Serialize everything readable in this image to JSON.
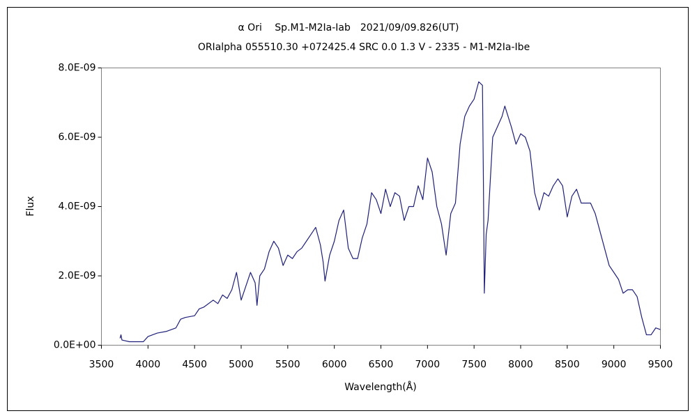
{
  "chart_data": {
    "type": "line",
    "title": "α Ori　 Sp.M1-M2Ia-Iab　2021/09/09.826(UT)",
    "subtitle": "ORIalpha 055510.30 +072425.4 SRC 0.0 1.3 V - 2335 - M1-M2Ia-Ibe",
    "x_label": "Wavelength(Å)",
    "y_label": "Flux",
    "xlim": [
      3500,
      9500
    ],
    "xticks": [
      3500,
      4000,
      4500,
      5000,
      5500,
      6000,
      6500,
      7000,
      7500,
      8000,
      8500,
      9000,
      9500
    ],
    "ylim": [
      0,
      8e-09
    ],
    "yticks": [
      {
        "value": 0,
        "label": "0.0E+00"
      },
      {
        "value": 2e-09,
        "label": "2.0E-09"
      },
      {
        "value": 4e-09,
        "label": "4.0E-09"
      },
      {
        "value": 6e-09,
        "label": "6.0E-09"
      },
      {
        "value": 8e-09,
        "label": "8.0E-09"
      }
    ],
    "grid": false,
    "x": [
      3700,
      3710,
      3720,
      3800,
      3900,
      3950,
      4000,
      4100,
      4200,
      4300,
      4350,
      4400,
      4500,
      4550,
      4600,
      4700,
      4750,
      4800,
      4850,
      4900,
      4950,
      5000,
      5050,
      5100,
      5150,
      5170,
      5200,
      5250,
      5300,
      5350,
      5400,
      5450,
      5500,
      5550,
      5600,
      5650,
      5700,
      5750,
      5800,
      5850,
      5880,
      5900,
      5950,
      6000,
      6050,
      6100,
      6150,
      6200,
      6250,
      6300,
      6350,
      6400,
      6450,
      6500,
      6550,
      6600,
      6650,
      6700,
      6750,
      6800,
      6850,
      6900,
      6950,
      7000,
      7050,
      7100,
      7150,
      7200,
      7250,
      7300,
      7350,
      7400,
      7450,
      7500,
      7550,
      7590,
      7600,
      7610,
      7630,
      7650,
      7700,
      7750,
      7800,
      7830,
      7900,
      7950,
      8000,
      8050,
      8100,
      8150,
      8200,
      8250,
      8300,
      8350,
      8400,
      8450,
      8500,
      8550,
      8600,
      8650,
      8700,
      8750,
      8800,
      8850,
      8900,
      8950,
      9000,
      9050,
      9100,
      9150,
      9200,
      9250,
      9300,
      9350,
      9400,
      9450,
      9500
    ],
    "series": [
      {
        "color": "#1f1f7a",
        "values": [
          2e-10,
          3e-10,
          1.5e-10,
          1e-10,
          1e-10,
          1e-10,
          2.5e-10,
          3.5e-10,
          4e-10,
          5e-10,
          7.5e-10,
          8e-10,
          8.5e-10,
          1.05e-09,
          1.1e-09,
          1.3e-09,
          1.2e-09,
          1.45e-09,
          1.35e-09,
          1.6e-09,
          2.1e-09,
          1.3e-09,
          1.7e-09,
          2.1e-09,
          1.8e-09,
          1.15e-09,
          2e-09,
          2.2e-09,
          2.7e-09,
          3e-09,
          2.8e-09,
          2.3e-09,
          2.6e-09,
          2.5e-09,
          2.7e-09,
          2.8e-09,
          3e-09,
          3.2e-09,
          3.4e-09,
          2.9e-09,
          2.4e-09,
          1.85e-09,
          2.6e-09,
          3e-09,
          3.6e-09,
          3.9e-09,
          2.8e-09,
          2.5e-09,
          2.5e-09,
          3.1e-09,
          3.5e-09,
          4.4e-09,
          4.2e-09,
          3.8e-09,
          4.5e-09,
          4e-09,
          4.4e-09,
          4.3e-09,
          3.6e-09,
          4e-09,
          4e-09,
          4.6e-09,
          4.2e-09,
          5.4e-09,
          5e-09,
          4e-09,
          3.5e-09,
          2.6e-09,
          3.8e-09,
          4.1e-09,
          5.8e-09,
          6.6e-09,
          6.9e-09,
          7.1e-09,
          7.6e-09,
          7.5e-09,
          4.8e-09,
          1.5e-09,
          3.2e-09,
          3.6e-09,
          6e-09,
          6.3e-09,
          6.6e-09,
          6.9e-09,
          6.3e-09,
          5.8e-09,
          6.1e-09,
          6e-09,
          5.6e-09,
          4.4e-09,
          3.9e-09,
          4.4e-09,
          4.3e-09,
          4.6e-09,
          4.8e-09,
          4.6e-09,
          3.7e-09,
          4.3e-09,
          4.5e-09,
          4.1e-09,
          4.1e-09,
          4.1e-09,
          3.8e-09,
          3.3e-09,
          2.8e-09,
          2.3e-09,
          2.1e-09,
          1.9e-09,
          1.5e-09,
          1.6e-09,
          1.6e-09,
          1.4e-09,
          8e-10,
          3e-10,
          3e-10,
          5e-10,
          4.5e-10
        ]
      }
    ]
  }
}
